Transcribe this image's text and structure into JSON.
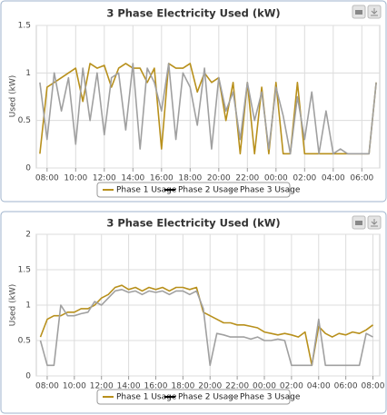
{
  "chart_data": [
    {
      "type": "line",
      "title": "3 Phase Electricity Used (kW)",
      "y_label": "Used (kW)",
      "x": [
        7.5,
        8,
        8.5,
        9,
        9.5,
        10,
        10.5,
        11,
        11.5,
        12,
        12.5,
        13,
        13.5,
        14,
        14.5,
        15,
        15.5,
        16,
        16.5,
        17,
        17.5,
        18,
        18.5,
        19,
        19.5,
        20,
        20.5,
        21,
        21.5,
        22,
        22.5,
        23,
        23.5,
        24,
        24.5,
        25,
        25.5,
        26,
        26.5,
        27,
        27.5,
        28,
        28.5,
        29,
        29.5,
        30,
        30.5,
        31
      ],
      "xlim": [
        7.25,
        31.25
      ],
      "xticks": [
        {
          "value": 8,
          "label": "08:00"
        },
        {
          "value": 10,
          "label": "10:00"
        },
        {
          "value": 12,
          "label": "12:00"
        },
        {
          "value": 14,
          "label": "14:00"
        },
        {
          "value": 16,
          "label": "16:00"
        },
        {
          "value": 18,
          "label": "18:00"
        },
        {
          "value": 20,
          "label": "20:00"
        },
        {
          "value": 22,
          "label": "22:00"
        },
        {
          "value": 24,
          "label": "00:00"
        },
        {
          "value": 26,
          "label": "02:00"
        },
        {
          "value": 28,
          "label": "04:00"
        },
        {
          "value": 30,
          "label": "06:00"
        }
      ],
      "ylim": [
        0,
        1.5
      ],
      "yticks": [
        0,
        0.5,
        1,
        1.5
      ],
      "grid": true,
      "series": [
        {
          "name": "Phase 1 Usage",
          "color": "#b8901c",
          "values": [
            0.15,
            0.85,
            0.9,
            0.95,
            1.0,
            1.05,
            0.7,
            1.1,
            1.05,
            1.08,
            0.85,
            1.05,
            1.1,
            1.05,
            1.05,
            0.9,
            1.05,
            0.2,
            1.1,
            1.05,
            1.05,
            1.1,
            0.8,
            1.0,
            0.9,
            0.95,
            0.5,
            0.9,
            0.15,
            0.9,
            0.15,
            0.85,
            0.15,
            0.9,
            0.15,
            0.15,
            0.9,
            0.15,
            0.15,
            0.15,
            0.15,
            0.15,
            0.15,
            0.15,
            0.15,
            0.15,
            0.15,
            0.9
          ]
        },
        {
          "name": "Phase 2 Usage",
          "color": "#000000",
          "values": [
            null,
            null,
            null,
            null,
            null,
            null,
            null,
            null,
            null,
            null,
            null,
            null,
            null,
            null,
            null,
            null,
            null,
            null,
            null,
            null,
            null,
            null,
            null,
            null,
            null,
            null,
            null,
            null,
            null,
            null,
            null,
            null,
            null,
            null,
            null,
            null,
            null,
            null,
            null,
            null,
            null,
            null,
            null,
            null,
            null,
            null,
            null,
            null
          ]
        },
        {
          "name": "Phase 3 Usage",
          "color": "#a0a0a0",
          "values": [
            0.9,
            0.3,
            1.0,
            0.6,
            0.95,
            0.25,
            1.05,
            0.5,
            1.0,
            0.35,
            0.95,
            1.0,
            0.4,
            1.1,
            0.2,
            1.05,
            0.9,
            0.6,
            1.1,
            0.3,
            1.0,
            0.85,
            0.45,
            1.05,
            0.2,
            0.95,
            0.6,
            0.8,
            0.3,
            0.9,
            0.5,
            0.8,
            0.2,
            0.85,
            0.55,
            0.15,
            0.75,
            0.3,
            0.8,
            0.15,
            0.6,
            0.15,
            0.2,
            0.15,
            0.15,
            0.15,
            0.15,
            0.9
          ]
        }
      ]
    },
    {
      "type": "line",
      "title": "3 Phase Electricity Used (kW)",
      "y_label": "Used (kW)",
      "x": [
        7.5,
        8,
        8.5,
        9,
        9.5,
        10,
        10.5,
        11,
        11.5,
        12,
        12.5,
        13,
        13.5,
        14,
        14.5,
        15,
        15.5,
        16,
        16.5,
        17,
        17.5,
        18,
        18.5,
        19,
        19.5,
        20,
        20.5,
        21,
        21.5,
        22,
        22.5,
        23,
        23.5,
        24,
        24.5,
        25,
        25.5,
        26,
        26.5,
        27,
        27.5,
        28,
        28.5,
        29,
        29.5,
        30,
        30.5,
        31,
        31.5,
        32
      ],
      "xlim": [
        7.2,
        32.5
      ],
      "xticks": [
        {
          "value": 8,
          "label": "08:00"
        },
        {
          "value": 10,
          "label": "10:00"
        },
        {
          "value": 12,
          "label": "12:00"
        },
        {
          "value": 14,
          "label": "14:00"
        },
        {
          "value": 16,
          "label": "16:00"
        },
        {
          "value": 18,
          "label": "18:00"
        },
        {
          "value": 20,
          "label": "20:00"
        },
        {
          "value": 22,
          "label": "22:00"
        },
        {
          "value": 24,
          "label": "00:00"
        },
        {
          "value": 26,
          "label": "02:00"
        },
        {
          "value": 28,
          "label": "04:00"
        },
        {
          "value": 30,
          "label": "06:00"
        },
        {
          "value": 32,
          "label": "08:00"
        }
      ],
      "ylim": [
        0,
        2
      ],
      "yticks": [
        0,
        0.5,
        1,
        1.5,
        2
      ],
      "grid": true,
      "series": [
        {
          "name": "Phase 1 Usage",
          "color": "#b8901c",
          "values": [
            0.55,
            0.8,
            0.85,
            0.85,
            0.9,
            0.9,
            0.95,
            0.95,
            1.0,
            1.1,
            1.15,
            1.25,
            1.28,
            1.22,
            1.25,
            1.2,
            1.25,
            1.22,
            1.25,
            1.2,
            1.25,
            1.25,
            1.22,
            1.25,
            0.9,
            0.85,
            0.8,
            0.75,
            0.75,
            0.72,
            0.72,
            0.7,
            0.68,
            0.62,
            0.6,
            0.58,
            0.6,
            0.58,
            0.55,
            0.62,
            0.15,
            0.7,
            0.6,
            0.55,
            0.6,
            0.58,
            0.62,
            0.6,
            0.65,
            0.72
          ]
        },
        {
          "name": "Phase 2 Usage",
          "color": "#000000",
          "values": [
            null,
            null,
            null,
            null,
            null,
            null,
            null,
            null,
            null,
            null,
            null,
            null,
            null,
            null,
            null,
            null,
            null,
            null,
            null,
            null,
            null,
            null,
            null,
            null,
            null,
            null,
            null,
            null,
            null,
            null,
            null,
            null,
            null,
            null,
            null,
            null,
            null,
            null,
            null,
            null,
            null,
            null,
            null,
            null,
            null,
            null,
            null,
            null,
            null,
            null
          ]
        },
        {
          "name": "Phase 3 Usage",
          "color": "#a0a0a0",
          "values": [
            0.5,
            0.15,
            0.15,
            1.0,
            0.85,
            0.85,
            0.88,
            0.9,
            1.05,
            1.0,
            1.1,
            1.2,
            1.22,
            1.18,
            1.2,
            1.15,
            1.2,
            1.18,
            1.2,
            1.15,
            1.2,
            1.2,
            1.15,
            1.2,
            0.95,
            0.15,
            0.6,
            0.58,
            0.55,
            0.55,
            0.55,
            0.52,
            0.55,
            0.5,
            0.5,
            0.52,
            0.5,
            0.15,
            0.15,
            0.15,
            0.15,
            0.8,
            0.15,
            0.15,
            0.15,
            0.15,
            0.15,
            0.15,
            0.6,
            0.55
          ]
        }
      ]
    }
  ]
}
